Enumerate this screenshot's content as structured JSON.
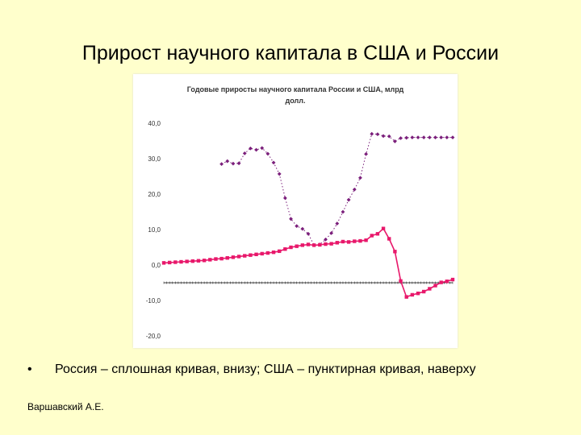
{
  "slide": {
    "title": "Прирост научного капитала в США и России",
    "bullet_marker": "•",
    "bullet_text": "Россия – сплошная кривая, внизу; США – пунктирная кривая, наверху",
    "author": "Варшавский А.Е."
  },
  "chart_data": {
    "type": "line",
    "title_line1": "Годовые приросты научного капитала России и США, млрд",
    "title_line2": "долл.",
    "ylim": [
      -20,
      40
    ],
    "yticks": [
      "40,0",
      "30,0",
      "20,0",
      "10,0",
      "0,0",
      "-10,0",
      "-20,0"
    ],
    "grid": false,
    "legend": "none",
    "series": [
      {
        "style": "dotted-diamond",
        "color": "#7B1F7B",
        "points": [
          [
            10,
            28.5
          ],
          [
            11,
            29.3
          ],
          [
            12,
            28.6
          ],
          [
            13,
            28.7
          ],
          [
            14,
            31.5
          ],
          [
            15,
            32.9
          ],
          [
            16,
            32.5
          ],
          [
            17,
            33.0
          ],
          [
            18,
            31.4
          ],
          [
            19,
            28.9
          ],
          [
            20,
            25.7
          ],
          [
            21,
            18.9
          ],
          [
            22,
            13.0
          ],
          [
            23,
            11.0
          ],
          [
            24,
            10.2
          ],
          [
            25,
            8.8
          ],
          [
            26,
            5.6
          ],
          [
            27,
            5.8
          ],
          [
            28,
            7.2
          ],
          [
            29,
            9.0
          ],
          [
            30,
            11.7
          ],
          [
            31,
            15.0
          ],
          [
            32,
            18.4
          ],
          [
            33,
            21.3
          ],
          [
            34,
            24.6
          ],
          [
            35,
            31.3
          ],
          [
            36,
            37.0
          ],
          [
            37,
            36.9
          ],
          [
            38,
            36.4
          ],
          [
            39,
            36.3
          ],
          [
            40,
            34.9
          ],
          [
            41,
            35.8
          ],
          [
            42,
            35.9
          ],
          [
            43,
            36.0
          ],
          [
            44,
            36.0
          ],
          [
            45,
            36.0
          ],
          [
            46,
            36.0
          ],
          [
            47,
            36.0
          ],
          [
            48,
            36.0
          ],
          [
            49,
            36.0
          ],
          [
            50,
            36.0
          ]
        ]
      },
      {
        "style": "solid-square",
        "color": "#E8186B",
        "points": [
          [
            0,
            0.6
          ],
          [
            1,
            0.7
          ],
          [
            2,
            0.8
          ],
          [
            3,
            0.9
          ],
          [
            4,
            1.0
          ],
          [
            5,
            1.1
          ],
          [
            6,
            1.2
          ],
          [
            7,
            1.3
          ],
          [
            8,
            1.5
          ],
          [
            9,
            1.7
          ],
          [
            10,
            1.8
          ],
          [
            11,
            2.0
          ],
          [
            12,
            2.2
          ],
          [
            13,
            2.4
          ],
          [
            14,
            2.6
          ],
          [
            15,
            2.8
          ],
          [
            16,
            3.0
          ],
          [
            17,
            3.2
          ],
          [
            18,
            3.4
          ],
          [
            19,
            3.6
          ],
          [
            20,
            3.9
          ],
          [
            21,
            4.5
          ],
          [
            22,
            5.0
          ],
          [
            23,
            5.3
          ],
          [
            24,
            5.6
          ],
          [
            25,
            5.8
          ],
          [
            26,
            5.6
          ],
          [
            27,
            5.7
          ],
          [
            28,
            5.9
          ],
          [
            29,
            6.0
          ],
          [
            30,
            6.3
          ],
          [
            31,
            6.6
          ],
          [
            32,
            6.5
          ],
          [
            33,
            6.7
          ],
          [
            34,
            6.8
          ],
          [
            35,
            7.0
          ],
          [
            36,
            8.3
          ],
          [
            37,
            8.8
          ],
          [
            38,
            10.3
          ],
          [
            39,
            7.4
          ],
          [
            40,
            3.8
          ],
          [
            41,
            -4.5
          ],
          [
            42,
            -9.0
          ],
          [
            43,
            -8.4
          ],
          [
            44,
            -8.0
          ],
          [
            45,
            -7.5
          ],
          [
            46,
            -6.7
          ],
          [
            47,
            -5.8
          ],
          [
            48,
            -4.9
          ],
          [
            49,
            -4.6
          ],
          [
            50,
            -4.1
          ]
        ]
      }
    ]
  }
}
